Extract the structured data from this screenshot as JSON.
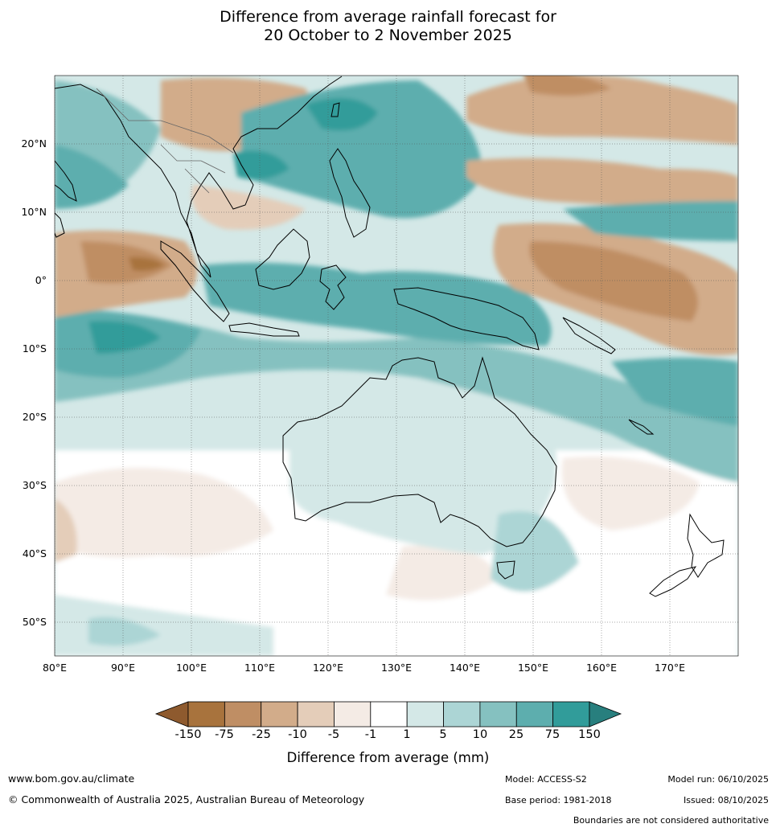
{
  "title": {
    "line1": "Difference from average rainfall forecast for",
    "line2": "20 October to 2 November 2025"
  },
  "lat_ticks": [
    "20°N",
    "10°N",
    "0°",
    "10°S",
    "20°S",
    "30°S",
    "40°S",
    "50°S"
  ],
  "lon_ticks": [
    "80°E",
    "90°E",
    "100°E",
    "110°E",
    "120°E",
    "130°E",
    "140°E",
    "150°E",
    "160°E",
    "170°E"
  ],
  "colorbar": {
    "title": "Difference from average (mm)",
    "labels": [
      "-150",
      "-75",
      "-25",
      "-10",
      "-5",
      "-1",
      "1",
      "5",
      "10",
      "25",
      "75",
      "150"
    ],
    "colors": [
      "#a8733d",
      "#bf8e64",
      "#d2ac8a",
      "#e4cdb9",
      "#f4ebe5",
      "#ffffff",
      "#d4e8e7",
      "#acd5d5",
      "#85c1c0",
      "#5daeae",
      "#319c9a"
    ],
    "low_extend_color": "#8e5a2e",
    "high_extend_color": "#287f7e"
  },
  "footer": {
    "website": "www.bom.gov.au/climate",
    "copyright": "© Commonwealth of Australia 2025, Australian Bureau of Meteorology",
    "model": "Model: ACCESS-S2",
    "base_period": "Base period: 1981-2018",
    "model_run": "Model run: 06/10/2025",
    "issued": "Issued: 08/10/2025",
    "disclaimer": "Boundaries are not considered authoritative"
  }
}
